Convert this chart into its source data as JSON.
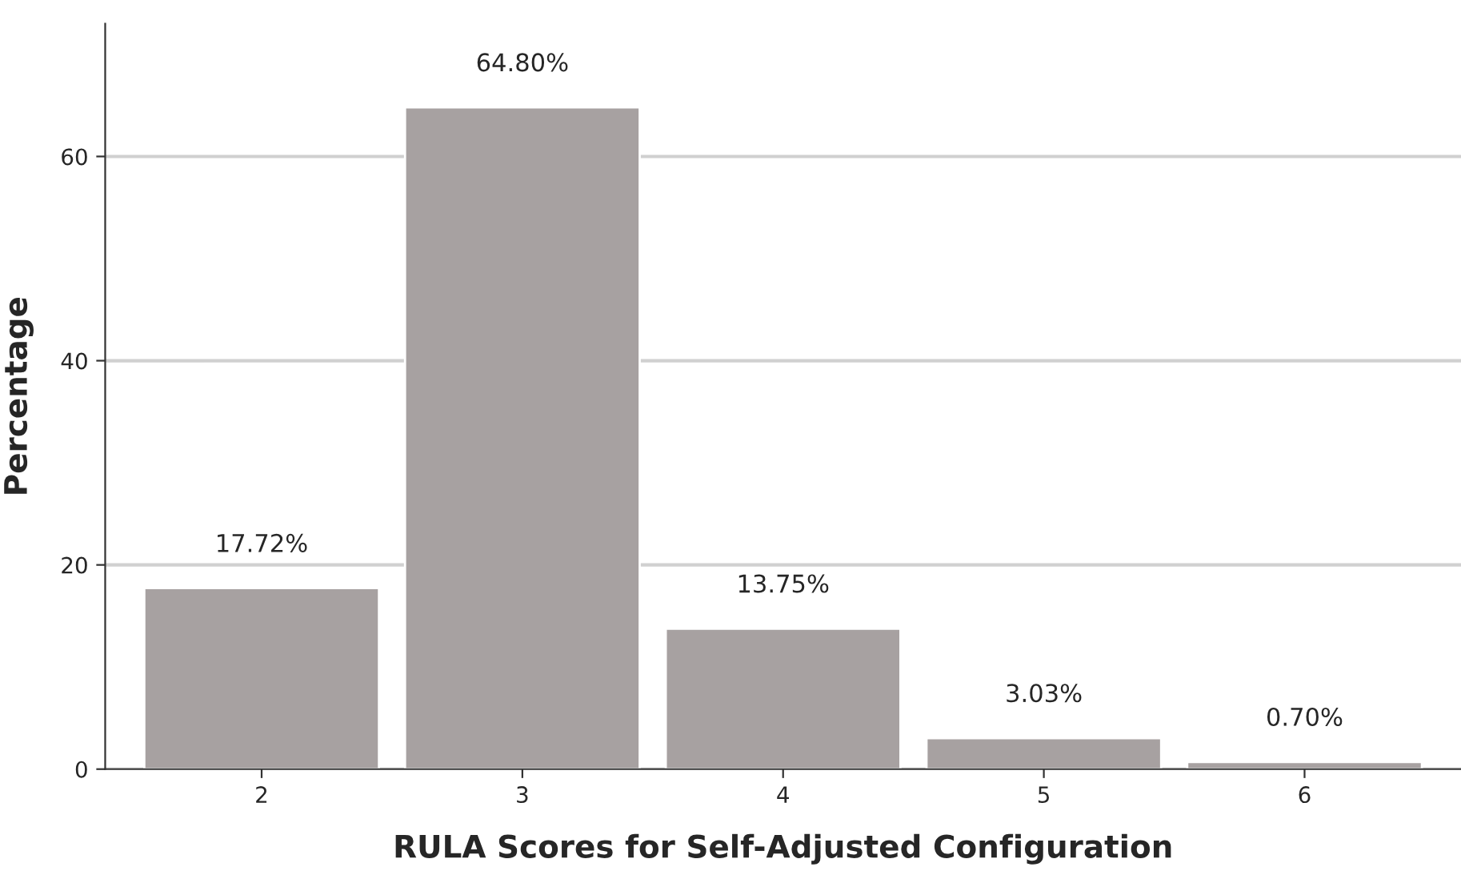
{
  "chart_data": {
    "type": "bar",
    "xlabel": "RULA Scores for Self-Adjusted Configuration",
    "ylabel": "Percentage",
    "categories": [
      "2",
      "3",
      "4",
      "5",
      "6"
    ],
    "values": [
      17.72,
      64.8,
      13.75,
      3.03,
      0.7
    ],
    "value_labels": [
      "17.72%",
      "64.80%",
      "13.75%",
      "3.03%",
      "0.70%"
    ],
    "color": "#a7a1a1",
    "ylim": [
      0,
      73
    ],
    "yticks": [
      0,
      20,
      40,
      60
    ],
    "grid": "y",
    "legend": false
  }
}
